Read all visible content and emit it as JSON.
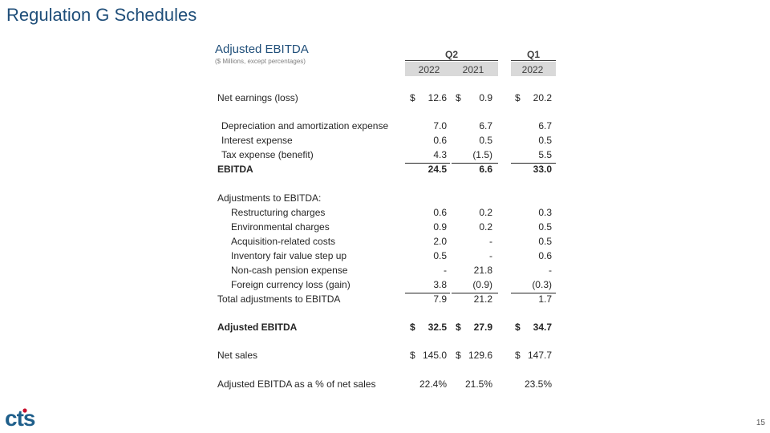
{
  "slide_title": "Regulation G Schedules",
  "table": {
    "title": "Adjusted EBITDA",
    "subtitle": "($ Millions, except percentages)",
    "period_q2": "Q2",
    "period_q1": "Q1",
    "years": [
      "2022",
      "2021",
      "2022"
    ]
  },
  "rows": [
    {
      "label": "Net earnings (loss)",
      "dollar": "$",
      "values": [
        "12.6",
        "0.9",
        "20.2"
      ]
    },
    {
      "label": "Depreciation and amortization expense",
      "values": [
        "7.0",
        "6.7",
        "6.7"
      ]
    },
    {
      "label": "Interest expense",
      "values": [
        "0.6",
        "0.5",
        "0.5"
      ]
    },
    {
      "label": "Tax expense (benefit)",
      "values": [
        "4.3",
        "(1.5)",
        "5.5"
      ]
    },
    {
      "label": "EBITDA",
      "values": [
        "24.5",
        "6.6",
        "33.0"
      ]
    },
    {
      "label": "Adjustments to EBITDA:"
    },
    {
      "label": "Restructuring charges",
      "values": [
        "0.6",
        "0.2",
        "0.3"
      ]
    },
    {
      "label": "Environmental charges",
      "values": [
        "0.9",
        "0.2",
        "0.5"
      ]
    },
    {
      "label": "Acquisition-related costs",
      "values": [
        "2.0",
        "-",
        "0.5"
      ]
    },
    {
      "label": "Inventory fair value step up",
      "values": [
        "0.5",
        "-",
        "0.6"
      ]
    },
    {
      "label": "Non-cash pension expense",
      "values": [
        "-",
        "21.8",
        "-"
      ]
    },
    {
      "label": "Foreign currency loss (gain)",
      "values": [
        "3.8",
        "(0.9)",
        "(0.3)"
      ]
    },
    {
      "label": "Total adjustments to EBITDA",
      "values": [
        "7.9",
        "21.2",
        "1.7"
      ]
    },
    {
      "label": "Adjusted EBITDA",
      "dollar": "$",
      "values": [
        "32.5",
        "27.9",
        "34.7"
      ]
    },
    {
      "label": "Net sales",
      "dollar": "$",
      "values": [
        "145.0",
        "129.6",
        "147.7"
      ]
    },
    {
      "label": "Adjusted EBITDA as a % of net sales",
      "values": [
        "22.4%",
        "21.5%",
        "23.5%"
      ]
    }
  ],
  "logo_text": "cts",
  "page_number": "15",
  "colors": {
    "title": "#1f4e79",
    "logo": "#1f5f8b",
    "logo_dot": "#c8102e",
    "band": "#d9d9d9"
  }
}
